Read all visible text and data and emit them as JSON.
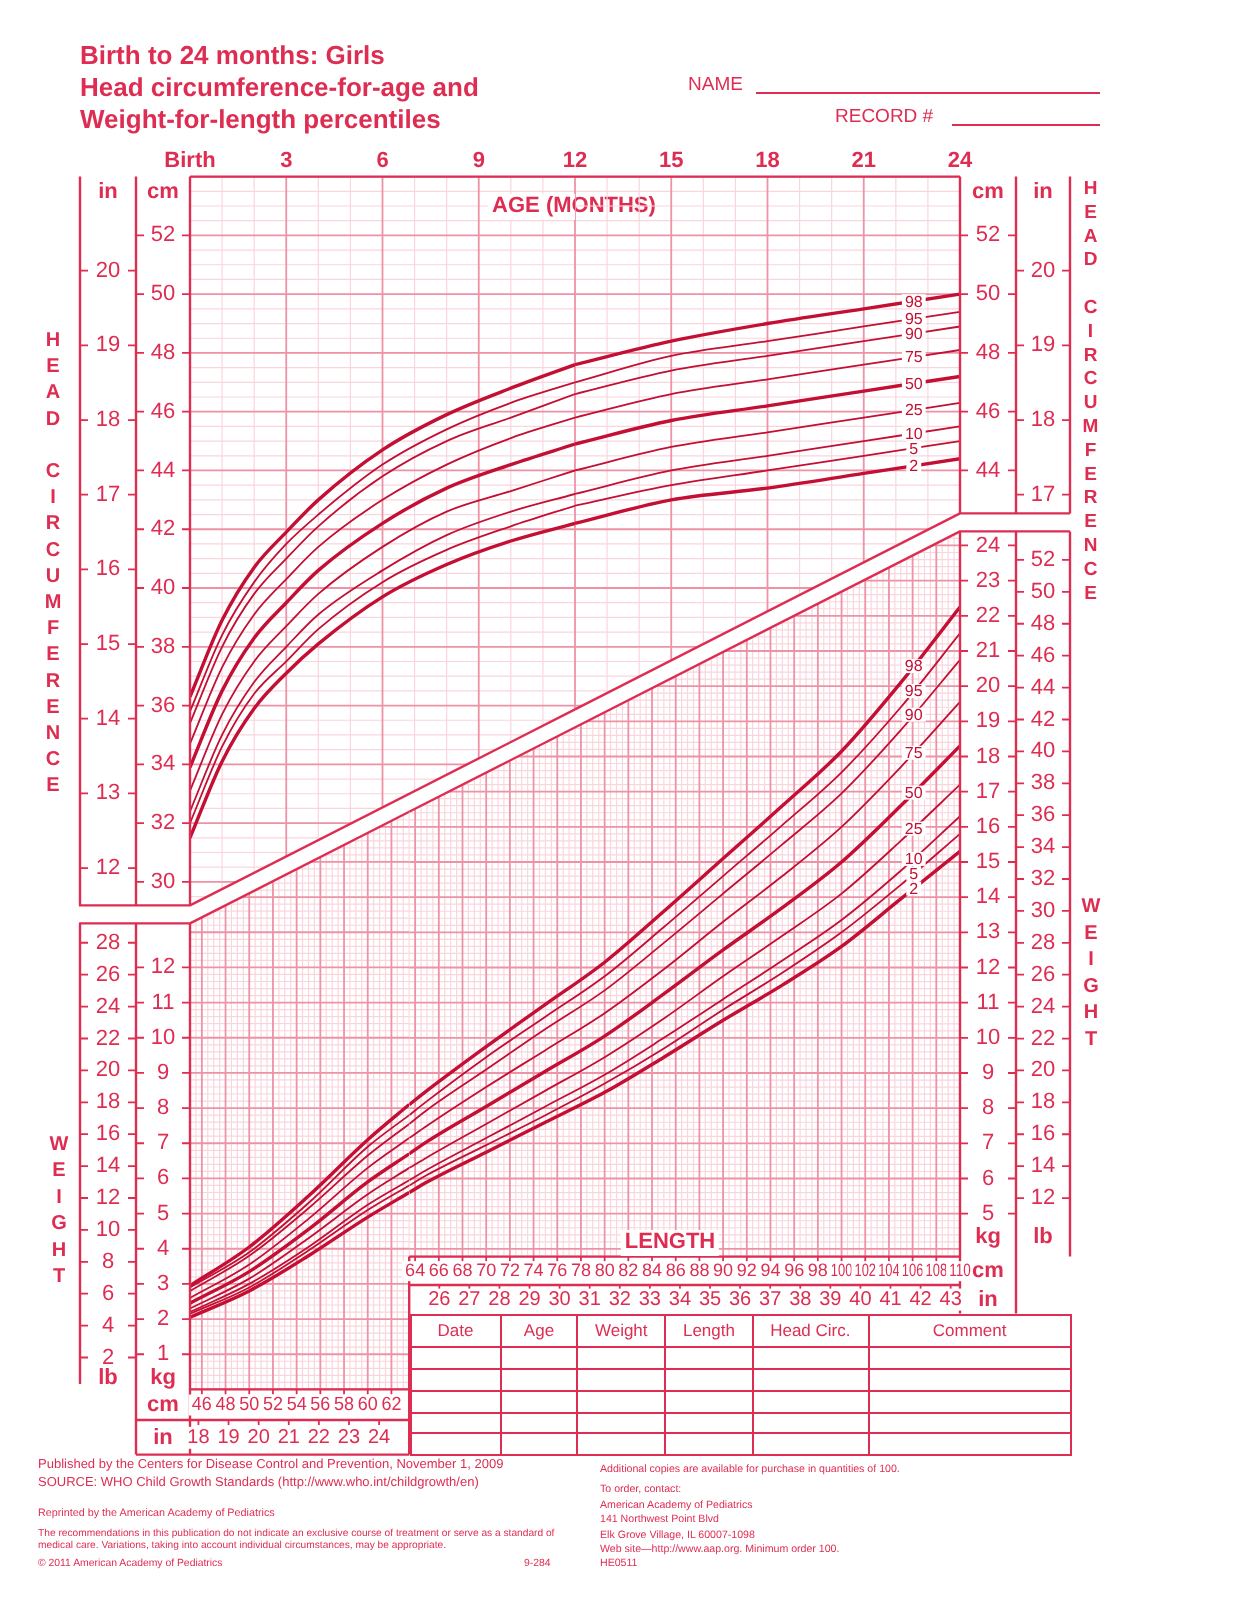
{
  "chart_data": [
    {
      "type": "line",
      "title": "Birth to 24 months: Girls\nHead circumference-for-age and\nWeight-for-length percentiles",
      "xlabel": "AGE (MONTHS)",
      "ylabel": "cm",
      "y2label": "in",
      "x": [
        0,
        1,
        2,
        3,
        4,
        6,
        8,
        10,
        12
      ],
      "series": [
        {
          "color": "#c20f33",
          "values": [
            36.3,
            38.9,
            40.7,
            41.9,
            43.0,
            44.7,
            45.9,
            46.8,
            47.6
          ]
        },
        {
          "color": "#c20f33",
          "values": [
            35.8,
            38.4,
            40.2,
            41.5,
            42.5,
            44.2,
            45.4,
            46.3,
            47.0
          ]
        },
        {
          "color": "#c20f33",
          "values": [
            35.4,
            38.0,
            39.8,
            41.0,
            42.1,
            43.8,
            45.0,
            45.8,
            46.6
          ]
        },
        {
          "color": "#c20f33",
          "values": [
            34.7,
            37.3,
            39.1,
            40.3,
            41.4,
            43.0,
            44.2,
            45.1,
            45.8
          ]
        },
        {
          "color": "#c20f33",
          "values": [
            33.9,
            36.5,
            38.3,
            39.5,
            40.6,
            42.2,
            43.4,
            44.2,
            44.9
          ]
        },
        {
          "color": "#c20f33",
          "values": [
            33.1,
            35.7,
            37.5,
            38.7,
            39.8,
            41.4,
            42.6,
            43.3,
            44.0
          ]
        },
        {
          "color": "#c20f33",
          "values": [
            32.4,
            35.0,
            36.8,
            38.0,
            39.1,
            40.6,
            41.8,
            42.6,
            43.2
          ]
        },
        {
          "color": "#c20f33",
          "values": [
            32.0,
            34.6,
            36.4,
            37.5,
            38.6,
            40.2,
            41.3,
            42.1,
            42.8
          ]
        },
        {
          "color": "#c20f33",
          "values": [
            31.5,
            34.1,
            35.9,
            37.1,
            38.1,
            39.7,
            40.8,
            41.6,
            42.2
          ]
        }
      ],
      "xlim": [
        0,
        12
      ],
      "xticks": [
        {
          "value": 0,
          "label": "Birth"
        },
        3,
        6,
        9,
        12
      ],
      "ylim": [
        29.2,
        54
      ],
      "yticks": [
        30,
        32,
        34,
        36,
        38,
        40,
        42,
        44,
        46,
        48,
        50,
        52
      ],
      "y2lim": [
        11.5,
        21.26
      ],
      "y2ticks": [
        12,
        13,
        14,
        15,
        16,
        17,
        18,
        19,
        20
      ],
      "grid": true,
      "legend": false,
      "marker": "none",
      "line_style": "solid",
      "annotations": [
        "HEAD CIRCUMFERENCE"
      ]
    },
    {
      "type": "line",
      "ylabel": "cm",
      "y2label": "in",
      "x": [
        12,
        15,
        18,
        21,
        24
      ],
      "series": [
        {
          "name": "98",
          "color": "#c20f33",
          "values": [
            47.6,
            48.4,
            49.0,
            49.5,
            50.0
          ]
        },
        {
          "name": "95",
          "color": "#c20f33",
          "values": [
            47.0,
            47.9,
            48.4,
            48.9,
            49.4
          ]
        },
        {
          "name": "90",
          "color": "#c20f33",
          "values": [
            46.6,
            47.4,
            47.9,
            48.4,
            48.9
          ]
        },
        {
          "name": "75",
          "color": "#c20f33",
          "values": [
            45.8,
            46.6,
            47.1,
            47.6,
            48.1
          ]
        },
        {
          "name": "50",
          "color": "#c20f33",
          "values": [
            44.9,
            45.7,
            46.2,
            46.7,
            47.2
          ]
        },
        {
          "name": "25",
          "color": "#c20f33",
          "values": [
            44.0,
            44.8,
            45.3,
            45.8,
            46.3
          ]
        },
        {
          "name": "10",
          "color": "#c20f33",
          "values": [
            43.2,
            44.0,
            44.5,
            45.0,
            45.5
          ]
        },
        {
          "name": "5",
          "color": "#c20f33",
          "values": [
            42.8,
            43.5,
            44.0,
            44.5,
            45.0
          ]
        },
        {
          "name": "2",
          "color": "#c20f33",
          "values": [
            42.2,
            43.0,
            43.4,
            43.9,
            44.4
          ]
        }
      ],
      "xlim": [
        12,
        24
      ],
      "xticks": [
        15,
        18,
        21,
        24
      ],
      "ylim": [
        29.2,
        54
      ],
      "yticks": [
        44,
        46,
        48,
        50,
        52
      ],
      "y2lim": [
        11.5,
        21.26
      ],
      "y2ticks": [
        17,
        18,
        19,
        20
      ],
      "grid": true,
      "legend": false,
      "marker": "none",
      "line_style": "solid",
      "annotations": [
        "HEAD CIRCUMFERENCE",
        "NAME",
        "RECORD #"
      ]
    },
    {
      "type": "line",
      "xlabel": "cm",
      "x2label": "in",
      "ylabel": "kg",
      "y2label": "lb",
      "x": [
        45,
        50,
        55,
        60,
        63.5
      ],
      "series": [
        {
          "color": "#c20f33",
          "values": [
            2.95,
            4.05,
            5.5,
            7.1,
            8.1
          ]
        },
        {
          "color": "#c20f33",
          "values": [
            2.9,
            3.9,
            5.3,
            6.9,
            7.8
          ]
        },
        {
          "color": "#c20f33",
          "values": [
            2.8,
            3.8,
            5.15,
            6.65,
            7.55
          ]
        },
        {
          "color": "#c20f33",
          "values": [
            2.6,
            3.55,
            4.85,
            6.3,
            7.15
          ]
        },
        {
          "color": "#c20f33",
          "values": [
            2.45,
            3.35,
            4.55,
            5.9,
            6.7
          ]
        },
        {
          "color": "#c20f33",
          "values": [
            2.3,
            3.15,
            4.3,
            5.55,
            6.3
          ]
        },
        {
          "color": "#c20f33",
          "values": [
            2.2,
            3.0,
            4.05,
            5.25,
            5.95
          ]
        },
        {
          "color": "#c20f33",
          "values": [
            2.15,
            2.9,
            3.95,
            5.1,
            5.8
          ]
        },
        {
          "color": "#c20f33",
          "values": [
            2.05,
            2.8,
            3.8,
            4.9,
            5.6
          ]
        }
      ],
      "xlim": [
        45,
        63.5
      ],
      "xticks": [
        46,
        48,
        50,
        52,
        54,
        56,
        58,
        60,
        62
      ],
      "x2lim": [
        17.72,
        25
      ],
      "x2ticks": [
        18,
        19,
        20,
        21,
        22,
        23,
        24
      ],
      "ylim": [
        0,
        24.4
      ],
      "yticks": [
        1,
        2,
        3,
        4,
        5,
        6,
        7,
        8,
        9,
        10,
        11,
        12
      ],
      "y2lim": [
        0,
        53.79
      ],
      "y2ticks": [
        2,
        4,
        6,
        8,
        10,
        12,
        14,
        16,
        18,
        20,
        22,
        24,
        26,
        28
      ],
      "grid": true,
      "legend": false,
      "marker": "none",
      "line_style": "solid",
      "annotations": [
        "WEIGHT",
        "Published by the Centers for Disease Control and Prevention, November 1, 2009",
        "SOURCE: WHO Child Growth Standards (http://www.who.int/childgrowth/en)",
        "Reprinted by the American Academy of Pediatrics",
        "The recommendations in this publication do not indicate an exclusive course of treatment or serve as a standard of medical care. Variations, taking into account individual circumstances, may be appropriate.",
        "© 2011 American Academy of Pediatrics",
        "9-284"
      ]
    },
    {
      "type": "line",
      "xlabel": "cm",
      "x2label": "in",
      "ylabel": "kg",
      "y2label": "lb",
      "x": [
        63.5,
        65,
        70,
        75,
        80,
        85,
        90,
        95,
        100,
        105,
        110
      ],
      "series": [
        {
          "name": "98",
          "color": "#c20f33",
          "values": [
            8.1,
            8.5,
            9.75,
            10.95,
            12.15,
            13.6,
            15.1,
            16.6,
            18.15,
            20.1,
            22.25
          ]
        },
        {
          "name": "95",
          "color": "#c20f33",
          "values": [
            7.8,
            8.2,
            9.45,
            10.6,
            11.75,
            13.15,
            14.6,
            16.05,
            17.55,
            19.4,
            21.5
          ]
        },
        {
          "name": "90",
          "color": "#c20f33",
          "values": [
            7.55,
            7.95,
            9.1,
            10.25,
            11.35,
            12.7,
            14.1,
            15.5,
            16.95,
            18.75,
            20.75
          ]
        },
        {
          "name": "75",
          "color": "#c20f33",
          "values": [
            7.15,
            7.5,
            8.6,
            9.65,
            10.7,
            11.95,
            13.3,
            14.6,
            16.0,
            17.7,
            19.55
          ]
        },
        {
          "name": "50",
          "color": "#c20f33",
          "values": [
            6.7,
            7.05,
            8.05,
            9.05,
            10.05,
            11.25,
            12.5,
            13.7,
            15.0,
            16.6,
            18.3
          ]
        },
        {
          "name": "25",
          "color": "#c20f33",
          "values": [
            6.3,
            6.6,
            7.55,
            8.5,
            9.45,
            10.55,
            11.75,
            12.9,
            14.1,
            15.6,
            17.2
          ]
        },
        {
          "name": "10",
          "color": "#c20f33",
          "values": [
            5.95,
            6.25,
            7.15,
            8.05,
            8.95,
            10.0,
            11.1,
            12.2,
            13.35,
            14.75,
            16.3
          ]
        },
        {
          "name": "5",
          "color": "#c20f33",
          "values": [
            5.8,
            6.1,
            6.95,
            7.8,
            8.7,
            9.7,
            10.8,
            11.85,
            13.0,
            14.35,
            15.8
          ]
        },
        {
          "name": "2",
          "color": "#c20f33",
          "values": [
            5.6,
            5.9,
            6.75,
            7.6,
            8.45,
            9.45,
            10.5,
            11.5,
            12.6,
            13.95,
            15.3
          ]
        }
      ],
      "xlim": [
        63.5,
        110
      ],
      "xticks": [
        64,
        66,
        68,
        70,
        72,
        74,
        76,
        78,
        80,
        82,
        84,
        86,
        88,
        90,
        92,
        94,
        96,
        98,
        100,
        102,
        104,
        106,
        108,
        110
      ],
      "x2lim": [
        25,
        43.31
      ],
      "x2ticks": [
        26,
        27,
        28,
        29,
        30,
        31,
        32,
        33,
        34,
        35,
        36,
        37,
        38,
        39,
        40,
        41,
        42,
        43
      ],
      "ylim": [
        3.78,
        24.4
      ],
      "yticks": [
        5,
        6,
        7,
        8,
        9,
        10,
        11,
        12,
        13,
        14,
        15,
        16,
        17,
        18,
        19,
        20,
        21,
        22,
        23,
        24
      ],
      "y2lim": [
        8.33,
        53.79
      ],
      "y2ticks": [
        12,
        14,
        16,
        18,
        20,
        22,
        24,
        26,
        28,
        30,
        32,
        34,
        36,
        38,
        40,
        42,
        44,
        46,
        48,
        50,
        52
      ],
      "grid": true,
      "legend": false,
      "marker": "none",
      "line_style": "solid",
      "annotations": [
        "WEIGHT",
        "LENGTH",
        "Date",
        "Age",
        "Weight",
        "Length",
        "Head Circ.",
        "Comment",
        "Additional copies are available for purchase in quantities of 100.",
        "To order, contact:",
        "American Academy of Pediatrics",
        "141 Northwest Point Blvd",
        "Elk Grove Village, IL 60007-1098",
        "Web site—http://www.aap.org. Minimum order 100.",
        "HE0511"
      ]
    }
  ]
}
